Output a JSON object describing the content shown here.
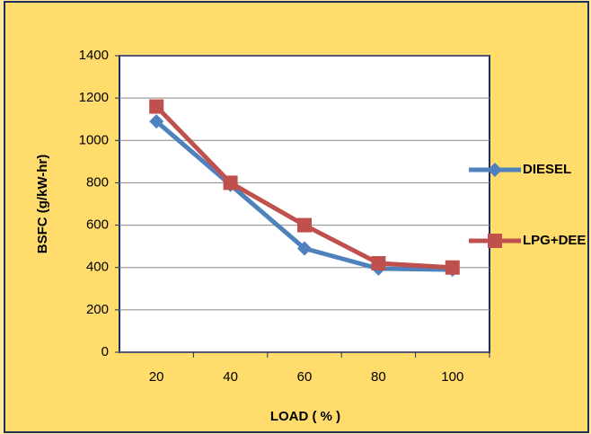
{
  "chart_data": {
    "type": "line",
    "categories": [
      "20",
      "40",
      "60",
      "80",
      "100"
    ],
    "series": [
      {
        "name": "DIESEL",
        "color": "#4f81bd",
        "marker": "diamond",
        "values": [
          1090,
          790,
          490,
          395,
          390
        ]
      },
      {
        "name": "LPG+DEE",
        "color": "#c0504d",
        "marker": "square",
        "values": [
          1160,
          800,
          600,
          420,
          400
        ]
      }
    ],
    "x_label": "LOAD ( % )",
    "y_label": "BSFC (g/kW-hr)",
    "ylim": [
      0,
      1400
    ],
    "yticks": [
      0,
      200,
      400,
      600,
      800,
      1000,
      1200,
      1400
    ],
    "grid": true,
    "legend": "right"
  }
}
